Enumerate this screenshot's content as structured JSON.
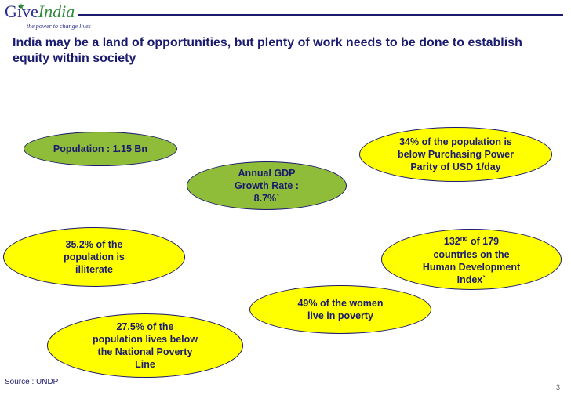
{
  "header": {
    "logo_give": "Give",
    "logo_india": "India",
    "logo_tagline": "the power to change lives",
    "title": "India may be a land of opportunities, but plenty of work needs to be done to establish equity within society"
  },
  "stats": {
    "population": "Population : 1.15 Bn",
    "gdp": "Annual GDP\nGrowth Rate :\n8.7%`",
    "ppp": "34% of the population is\nbelow Purchasing Power\nParity of USD 1/day",
    "illiterate": "35.2% of the\npopulation is\nilliterate",
    "hdi_rank": "132",
    "hdi_suffix": "nd",
    "hdi_rest": " of 179\ncountries on the\nHuman Development\nIndex`",
    "women_poverty": "49% of the women\nlive in poverty",
    "below_poverty": "27.5% of the\npopulation lives below\nthe National Poverty\nLine"
  },
  "footer": {
    "source": "Source : UNDP",
    "page_number": "3"
  },
  "colors": {
    "navy": "#1a1a6e",
    "green": "#8fbd3a",
    "yellow": "#ffff00"
  }
}
